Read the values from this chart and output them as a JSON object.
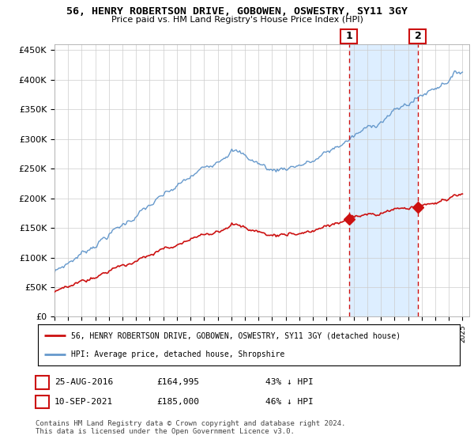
{
  "title": "56, HENRY ROBERTSON DRIVE, GOBOWEN, OSWESTRY, SY11 3GY",
  "subtitle": "Price paid vs. HM Land Registry's House Price Index (HPI)",
  "ylabel_ticks": [
    "£0",
    "£50K",
    "£100K",
    "£150K",
    "£200K",
    "£250K",
    "£300K",
    "£350K",
    "£400K",
    "£450K"
  ],
  "ytick_values": [
    0,
    50000,
    100000,
    150000,
    200000,
    250000,
    300000,
    350000,
    400000,
    450000
  ],
  "ylim": [
    0,
    460000
  ],
  "xlim_start": 1995.0,
  "xlim_end": 2025.5,
  "hpi_color": "#6699cc",
  "price_color": "#cc1111",
  "shade_color": "#ddeeff",
  "marker1_date": 2016.65,
  "marker1_price": 164995,
  "marker2_date": 2021.72,
  "marker2_price": 185000,
  "legend_label_price": "56, HENRY ROBERTSON DRIVE, GOBOWEN, OSWESTRY, SY11 3GY (detached house)",
  "legend_label_hpi": "HPI: Average price, detached house, Shropshire",
  "annotation1_date": "25-AUG-2016",
  "annotation1_price": "£164,995",
  "annotation1_hpi": "43% ↓ HPI",
  "annotation2_date": "10-SEP-2021",
  "annotation2_price": "£185,000",
  "annotation2_hpi": "46% ↓ HPI",
  "footer": "Contains HM Land Registry data © Crown copyright and database right 2024.\nThis data is licensed under the Open Government Licence v3.0.",
  "background_color": "#ffffff",
  "grid_color": "#cccccc"
}
